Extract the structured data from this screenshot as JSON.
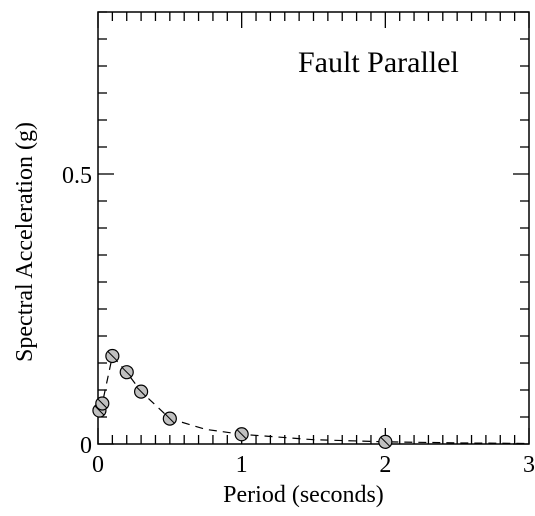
{
  "chart_data": {
    "type": "scatter",
    "title": "Fault Parallel",
    "xlabel": "Period (seconds)",
    "ylabel": "Spectral Acceleration (g)",
    "xlim": [
      0,
      3
    ],
    "ylim": [
      0,
      0.8
    ],
    "x_ticks": [
      0,
      1,
      2,
      3
    ],
    "x_tick_labels": [
      "0",
      "1",
      "2",
      "3"
    ],
    "y_ticks": [
      0,
      0.5
    ],
    "y_tick_labels": [
      "0",
      "0.5"
    ],
    "grid": false,
    "series": [
      {
        "x": [
          0.01,
          0.03,
          0.1,
          0.2,
          0.3,
          0.5,
          1.0,
          2.0
        ],
        "y": [
          0.062,
          0.075,
          0.163,
          0.133,
          0.097,
          0.047,
          0.018,
          0.004
        ],
        "marker_color": "#c0c0c0",
        "line_style": "dashed",
        "line_x": [
          0.01,
          0.03,
          0.1,
          0.2,
          0.3,
          0.5,
          0.75,
          1.0,
          1.5,
          2.0,
          2.5,
          3.0
        ],
        "line_y": [
          0.062,
          0.075,
          0.163,
          0.133,
          0.097,
          0.047,
          0.027,
          0.018,
          0.008,
          0.004,
          0.002,
          0.001
        ]
      }
    ]
  }
}
